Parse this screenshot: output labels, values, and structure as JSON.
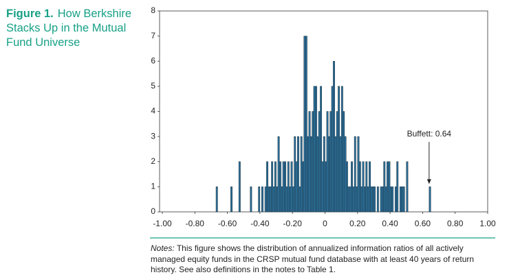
{
  "chart_data": {
    "type": "histogram",
    "title_label": "Figure 1.",
    "title": "How Berkshire Stacks Up in the Mutual Fund Universe",
    "notes_label": "Notes:",
    "notes": "This figure shows the distribution of annualized information ratios of all actively managed equity funds in the CRSP mutual fund database with at least 40 years of return history. See also definitions in the notes to Table 1.",
    "annotation": {
      "text": "Buffett: 0.64",
      "x": 0.64,
      "y": 1
    },
    "color": "#2b6f99",
    "edgecolor": "#1d2f3a",
    "bins": [
      -0.7,
      -0.69,
      -0.68,
      -0.67,
      -0.66,
      -0.65,
      -0.64,
      -0.63,
      -0.62,
      -0.61,
      -0.6,
      -0.59,
      -0.58,
      -0.57,
      -0.56,
      -0.55,
      -0.54,
      -0.53,
      -0.52,
      -0.51,
      -0.5,
      -0.49,
      -0.48,
      -0.47,
      -0.46,
      -0.45,
      -0.44,
      -0.43,
      -0.42,
      -0.41,
      -0.4,
      -0.39,
      -0.38,
      -0.37,
      -0.36,
      -0.35,
      -0.34,
      -0.33,
      -0.32,
      -0.31,
      -0.3,
      -0.29,
      -0.28,
      -0.27,
      -0.26,
      -0.25,
      -0.24,
      -0.23,
      -0.22,
      -0.21,
      -0.2,
      -0.19,
      -0.18,
      -0.17,
      -0.16,
      -0.15,
      -0.14,
      -0.13,
      -0.12,
      -0.11,
      -0.1,
      -0.09,
      -0.08,
      -0.07,
      -0.06,
      -0.05,
      -0.04,
      -0.03,
      -0.02,
      -0.01,
      0.0,
      0.01,
      0.02,
      0.03,
      0.04,
      0.05,
      0.06,
      0.07,
      0.08,
      0.09,
      0.1,
      0.11,
      0.12,
      0.13,
      0.14,
      0.15,
      0.16,
      0.17,
      0.18,
      0.19,
      0.2,
      0.21,
      0.22,
      0.23,
      0.24,
      0.25,
      0.26,
      0.27,
      0.28,
      0.29,
      0.3,
      0.31,
      0.32,
      0.33,
      0.34,
      0.35,
      0.36,
      0.37,
      0.38,
      0.39,
      0.4,
      0.41,
      0.42,
      0.43,
      0.44,
      0.45,
      0.46,
      0.47,
      0.48,
      0.49,
      0.5,
      0.51,
      0.52,
      0.53,
      0.54,
      0.55,
      0.56,
      0.57,
      0.58,
      0.59,
      0.6,
      0.61,
      0.62,
      0.63,
      0.64,
      0.65,
      0.66,
      0.67,
      0.68,
      0.69,
      0.7
    ],
    "counts": [
      0,
      0,
      0,
      1,
      0,
      0,
      0,
      0,
      0,
      0,
      0,
      0,
      1,
      0,
      0,
      0,
      0,
      2,
      0,
      0,
      0,
      0,
      0,
      0,
      1,
      0,
      0,
      0,
      0,
      1,
      0,
      1,
      0,
      1,
      2,
      1,
      1,
      2,
      1,
      2,
      1,
      3,
      2,
      1,
      2,
      2,
      1,
      2,
      1,
      2,
      1,
      3,
      2,
      3,
      1,
      3,
      2,
      7,
      7,
      3,
      4,
      3,
      4,
      5,
      5,
      3,
      4,
      5,
      2,
      3,
      2,
      4,
      3,
      4,
      5,
      6,
      3,
      4,
      5,
      3,
      5,
      4,
      3,
      2,
      1,
      1,
      2,
      1,
      3,
      1,
      3,
      2,
      1,
      2,
      1,
      2,
      1,
      2,
      1,
      1,
      1,
      0,
      1,
      0,
      1,
      1,
      2,
      1,
      2,
      2,
      1,
      1,
      0,
      1,
      2,
      0,
      1,
      1,
      1,
      0,
      2,
      0,
      0,
      0,
      0,
      0,
      0,
      0,
      0,
      0,
      0,
      0,
      0,
      0,
      1,
      0,
      0,
      0,
      0,
      0
    ],
    "xlim": [
      -1,
      1
    ],
    "xticks": [
      {
        "value": -1,
        "label": "-1.00"
      },
      {
        "value": -0.8,
        "label": "-0.80"
      },
      {
        "value": -0.6,
        "label": "-0.60"
      },
      {
        "value": -0.4,
        "label": "-0.40"
      },
      {
        "value": -0.2,
        "label": "-0.20"
      },
      0,
      {
        "value": 0.2,
        "label": "0.20"
      },
      {
        "value": 0.4,
        "label": "0.40"
      },
      {
        "value": 0.6,
        "label": "0.60"
      },
      {
        "value": 0.8,
        "label": "0.80"
      },
      {
        "value": 1,
        "label": "1.00"
      }
    ],
    "ylim": [
      0,
      8
    ],
    "yticks": [
      0,
      1,
      2,
      3,
      4,
      5,
      6,
      7,
      8
    ]
  }
}
